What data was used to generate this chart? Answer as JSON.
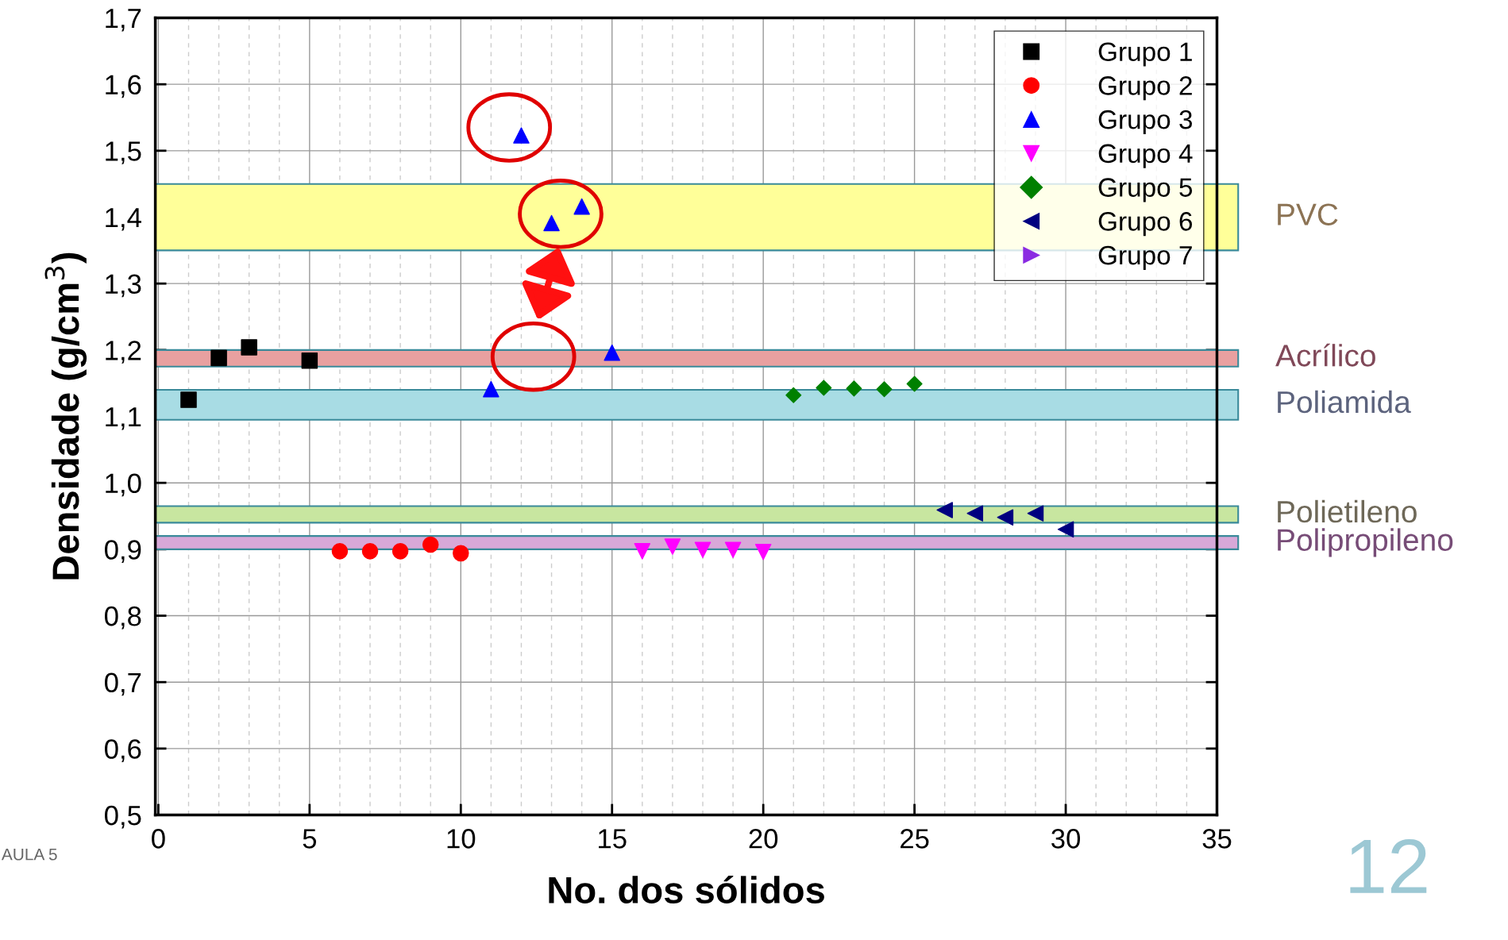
{
  "chart_data": {
    "type": "scatter",
    "xlabel": "No. dos sólidos",
    "ylabel": "Densidade (g/cm$^{3}$)",
    "xlim": [
      -0.1,
      35
    ],
    "xticks": [
      0,
      5,
      10,
      15,
      20,
      25,
      30,
      35
    ],
    "ylim": [
      0.5,
      1.7
    ],
    "yticks": [
      {
        "value": 0.5,
        "label": "0,5"
      },
      {
        "value": 0.6,
        "label": "0,6"
      },
      {
        "value": 0.7,
        "label": "0,7"
      },
      {
        "value": 0.8,
        "label": "0,8"
      },
      {
        "value": 0.9,
        "label": "0,9"
      },
      {
        "value": 1.0,
        "label": "1,0"
      },
      {
        "value": 1.1,
        "label": "1,1"
      },
      {
        "value": 1.2,
        "label": "1,2"
      },
      {
        "value": 1.3,
        "label": "1,3"
      },
      {
        "value": 1.4,
        "label": "1,4"
      },
      {
        "value": 1.5,
        "label": "1,5"
      },
      {
        "value": 1.6,
        "label": "1,6"
      },
      {
        "value": 1.7,
        "label": "1,7"
      }
    ],
    "grid": true,
    "legend": "top right",
    "series": [
      {
        "name": "Grupo 1",
        "color": "#000000",
        "marker": "square",
        "x": [
          1,
          2,
          3,
          5
        ],
        "values": [
          1.125,
          1.188,
          1.204,
          1.184
        ]
      },
      {
        "name": "Grupo 2",
        "color": "#ff0000",
        "marker": "circle",
        "x": [
          6,
          7,
          8,
          9,
          10
        ],
        "values": [
          0.897,
          0.897,
          0.897,
          0.907,
          0.894
        ]
      },
      {
        "name": "Grupo 3",
        "color": "#0000ff",
        "marker": "triangle",
        "x": [
          11,
          12,
          13,
          14,
          15
        ],
        "values": [
          1.141,
          1.523,
          1.391,
          1.416,
          1.196
        ]
      },
      {
        "name": "Grupo 4",
        "color": "#ff00ff",
        "marker": "triangle_down",
        "x": [
          16,
          17,
          18,
          19,
          20
        ],
        "values": [
          0.897,
          0.904,
          0.899,
          0.899,
          0.896
        ]
      },
      {
        "name": "Grupo 5",
        "color": "#008000",
        "marker": "diamond",
        "x": [
          21,
          22,
          23,
          24,
          25
        ],
        "values": [
          1.132,
          1.143,
          1.142,
          1.141,
          1.149
        ]
      },
      {
        "name": "Grupo 6",
        "color": "#000080",
        "marker": "triangle_left",
        "x": [
          26,
          27,
          28,
          29,
          30
        ],
        "values": [
          0.959,
          0.954,
          0.948,
          0.954,
          0.93
        ]
      },
      {
        "name": "Grupo 7",
        "color": "#8a2be2",
        "marker": "triangle_right"
      }
    ],
    "bands": [
      {
        "axis": "y",
        "from": 1.35,
        "to": 1.45,
        "label": "PVC",
        "color": "#ffff99"
      },
      {
        "axis": "y",
        "from": 1.175,
        "to": 1.2,
        "label": "Acrílico",
        "color": "#e8a0a0"
      },
      {
        "axis": "y",
        "from": 1.095,
        "to": 1.14,
        "label": "Poliamida",
        "color": "#a8dce4"
      },
      {
        "axis": "y",
        "from": 0.94,
        "to": 0.965,
        "label": "Polietileno",
        "color": "#c8e6a0"
      },
      {
        "axis": "y",
        "from": 0.9,
        "to": 0.92,
        "label": "Polipropileno",
        "color": "#d8a8d8"
      }
    ],
    "annotations": [
      "AULA 5",
      "12"
    ]
  }
}
